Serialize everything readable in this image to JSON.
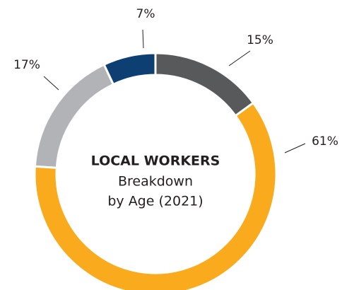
{
  "chart_data": {
    "type": "donut",
    "title": "LOCAL WORKERS",
    "subtitle": [
      "Breakdown",
      "by Age (2021)"
    ],
    "values": [
      15,
      61,
      17,
      7
    ],
    "value_labels": [
      "15%",
      "61%",
      "17%",
      "7%"
    ],
    "colors": [
      "#58595b",
      "#f9ab1d",
      "#b1b3b6",
      "#0d3f73"
    ]
  }
}
